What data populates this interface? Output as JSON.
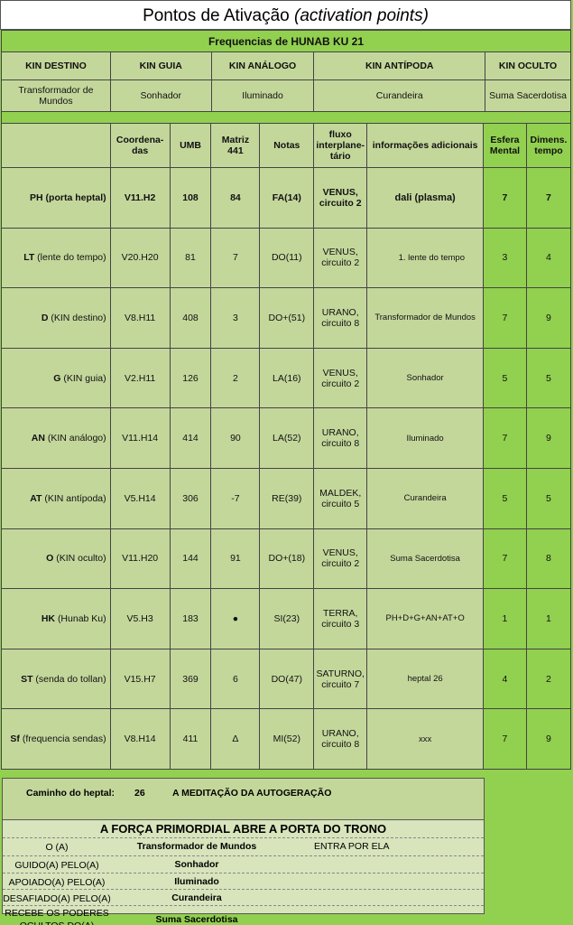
{
  "title": {
    "main": "Pontos de Ativação",
    "italic": "(activation points)"
  },
  "subtitle": "Frequencias de HUNAB KU 21",
  "kin_headers": [
    "KIN DESTINO",
    "KIN GUIA",
    "KIN ANÁLOGO",
    "KIN ANTÍPODA",
    "KIN OCULTO"
  ],
  "kin_values": [
    "Transformador de Mundos",
    "Sonhador",
    "Iluminado",
    "Curandeira",
    "Suma Sacerdotisa"
  ],
  "table": {
    "headers": [
      "",
      "Coordena-das",
      "UMB",
      "Matriz 441",
      "Notas",
      "fluxo interplane-tário",
      "informações adicionais",
      "Esfera Mental",
      "Dimens. tempo"
    ],
    "rows": [
      {
        "code": "PH",
        "label": "(porta heptal)",
        "coord": "V11.H2",
        "umb": "108",
        "matriz": "84",
        "notas": "FA(14)",
        "fluxo": "VENUS, circuito 2",
        "info": "dali (plasma)",
        "esfera": "7",
        "dimens": "7"
      },
      {
        "code": "LT",
        "label": "(lente do tempo)",
        "coord": "V20.H20",
        "umb": "81",
        "matriz": "7",
        "notas": "DO(11)",
        "fluxo": "VENUS, circuito 2",
        "info": "1. lente do tempo",
        "esfera": "3",
        "dimens": "4"
      },
      {
        "code": "D",
        "label": "(KIN destino)",
        "coord": "V8.H11",
        "umb": "408",
        "matriz": "3",
        "notas": "DO+(51)",
        "fluxo": "URANO, circuito 8",
        "info": "Transformador de Mundos",
        "esfera": "7",
        "dimens": "9"
      },
      {
        "code": "G",
        "label": "(KIN guia)",
        "coord": "V2.H11",
        "umb": "126",
        "matriz": "2",
        "notas": "LA(16)",
        "fluxo": "VENUS, circuito 2",
        "info": "Sonhador",
        "esfera": "5",
        "dimens": "5"
      },
      {
        "code": "AN",
        "label": "(KIN análogo)",
        "coord": "V11.H14",
        "umb": "414",
        "matriz": "90",
        "notas": "LA(52)",
        "fluxo": "URANO, circuito 8",
        "info": "Iluminado",
        "esfera": "7",
        "dimens": "9"
      },
      {
        "code": "AT",
        "label": "(KIN antípoda)",
        "coord": "V5.H14",
        "umb": "306",
        "matriz": "-7",
        "notas": "RE(39)",
        "fluxo": "MALDEK, circuito 5",
        "info": "Curandeira",
        "esfera": "5",
        "dimens": "5"
      },
      {
        "code": "O",
        "label": "(KIN oculto)",
        "coord": "V11.H20",
        "umb": "144",
        "matriz": "91",
        "notas": "DO+(18)",
        "fluxo": "VENUS, circuito 2",
        "info": "Suma Sacerdotisa",
        "esfera": "7",
        "dimens": "8"
      },
      {
        "code": "HK",
        "label": "(Hunab Ku)",
        "coord": "V5.H3",
        "umb": "183",
        "matriz": "●",
        "notas": "SI(23)",
        "fluxo": "TERRA, circuito 3",
        "info": "PH+D+G+AN+AT+O",
        "esfera": "1",
        "dimens": "1"
      },
      {
        "code": "ST",
        "label": "(senda do tollan)",
        "coord": "V15.H7",
        "umb": "369",
        "matriz": "6",
        "notas": "DO(47)",
        "fluxo": "SATURNO, circuito 7",
        "info": "heptal 26",
        "esfera": "4",
        "dimens": "2"
      },
      {
        "code": "Sf",
        "label": "(frequencia sendas)",
        "coord": "V8.H14",
        "umb": "411",
        "matriz": "Δ",
        "notas": "MI(52)",
        "fluxo": "URANO, circuito 8",
        "info": "xxx",
        "esfera": "7",
        "dimens": "9"
      }
    ]
  },
  "caminho": {
    "label": "Caminho do heptal:",
    "number": "26",
    "name": "A MEDITAÇÃO DA AUTOGERAÇÃO"
  },
  "forca": {
    "title": "A FORÇA PRIMORDIAL ABRE A PORTA DO TRONO",
    "lines": [
      {
        "left": "O (A)",
        "mid": "Transformador de Mundos",
        "right": "ENTRA POR ELA"
      },
      {
        "left": "GUIDO(A) PELO(A)",
        "mid": "Sonhador",
        "right": ""
      },
      {
        "left": "APOIADO(A) PELO(A)",
        "mid": "Iluminado",
        "right": ""
      },
      {
        "left": "DESAFIADO(A) PELO(A)",
        "mid": "Curandeira",
        "right": ""
      },
      {
        "left": "RECEBE OS PODERES OCULTOS DO(A)",
        "mid": "Suma Sacerdotisa",
        "right": ""
      }
    ]
  },
  "colors": {
    "light_green": "#c4d79b",
    "bright_green": "#92d050",
    "pale_green": "#d8e4bc"
  }
}
